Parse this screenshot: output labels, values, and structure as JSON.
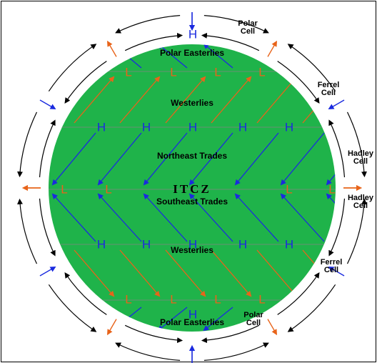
{
  "bands": [
    {
      "label": "Polar Easterlies"
    },
    {
      "label": "Westerlies"
    },
    {
      "label": "Northeast Trades"
    },
    {
      "label": "ITCZ"
    },
    {
      "label": "Southeast Trades"
    },
    {
      "label": "Westerlies"
    },
    {
      "label": "Polar Easterlies"
    }
  ],
  "pressure_rows": [
    {
      "letters": [
        "H"
      ]
    },
    {
      "letters": [
        "L",
        "L",
        "L",
        "L"
      ]
    },
    {
      "letters": [
        "H",
        "H",
        "H",
        "H",
        "H"
      ]
    },
    {
      "letters": [
        "L",
        "L",
        "L",
        "L"
      ]
    },
    {
      "letters": [
        "H",
        "H",
        "H",
        "H",
        "H"
      ]
    },
    {
      "letters": [
        "L",
        "L",
        "L",
        "L"
      ]
    },
    {
      "letters": [
        "H"
      ]
    }
  ],
  "cells": [
    {
      "lines": [
        "Polar",
        "Cell"
      ]
    },
    {
      "lines": [
        "Ferrel",
        "Cell"
      ]
    },
    {
      "lines": [
        "Hadley",
        "Cell"
      ]
    },
    {
      "lines": [
        "Hadley",
        "Cell"
      ]
    },
    {
      "lines": [
        "Ferrel",
        "Cell"
      ]
    },
    {
      "lines": [
        "Polar",
        "Cell"
      ]
    }
  ]
}
